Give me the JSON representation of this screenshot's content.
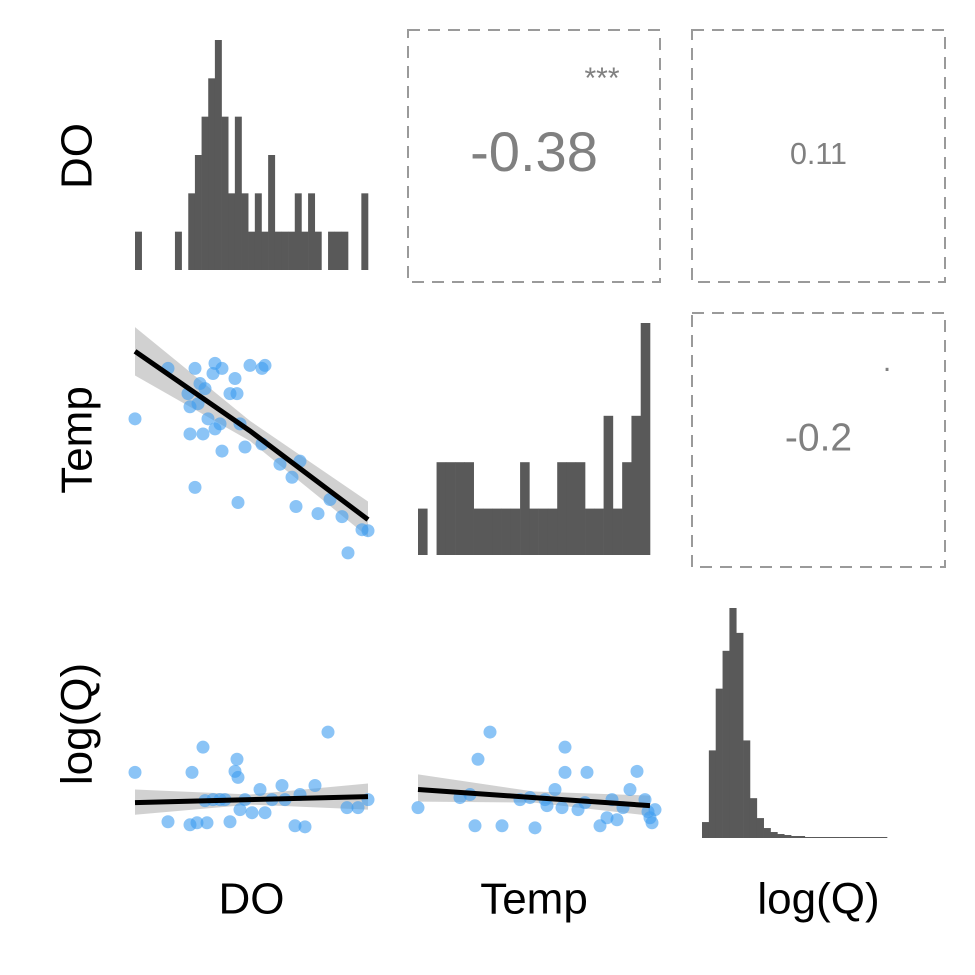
{
  "variables": [
    "DO",
    "Temp",
    "log(Q)"
  ],
  "chart_data": [
    {
      "type": "histogram",
      "bins": [
        0,
        1,
        2,
        3,
        4,
        5,
        6,
        7,
        8,
        9,
        10,
        11,
        12,
        13,
        14,
        15,
        16,
        17,
        18,
        19,
        20,
        21,
        22,
        23,
        24,
        25,
        26,
        27,
        28,
        29,
        30,
        31,
        32,
        33,
        34,
        35
      ],
      "counts": [
        1,
        0,
        0,
        0,
        0,
        0,
        1,
        0,
        2,
        3,
        4,
        5,
        6,
        4,
        2,
        4,
        2,
        1,
        2,
        1,
        3,
        1,
        1,
        1,
        2,
        1,
        2,
        1,
        0,
        1,
        1,
        1,
        0,
        0,
        2
      ],
      "xlim": [
        0,
        35
      ],
      "ylim": [
        0,
        6
      ],
      "color": "#595959"
    },
    {
      "type": "correlation",
      "value": -0.38,
      "significance": "***"
    },
    {
      "type": "correlation",
      "value": 0.11
    },
    {
      "type": "scatter",
      "xlim": [
        0,
        253
      ],
      "ylim": [
        0,
        252
      ],
      "color": "#3d9cf0",
      "x": [
        10,
        43,
        70,
        75,
        88,
        80,
        90,
        97,
        105,
        112,
        110,
        125,
        140,
        65,
        73,
        83,
        90,
        95,
        65,
        78,
        97,
        120,
        137,
        155,
        175,
        167,
        70,
        113,
        171,
        193,
        205,
        217,
        223,
        237,
        243,
        115,
        137,
        63
      ],
      "y": [
        147,
        197,
        197,
        182,
        192,
        177,
        202,
        197,
        172,
        172,
        187,
        200,
        200,
        159,
        162,
        147,
        137,
        142,
        132,
        132,
        115,
        119,
        122,
        102,
        105,
        89,
        79,
        64,
        60,
        53,
        67,
        50,
        14,
        37,
        36,
        142,
        197,
        172
      ],
      "fit": {
        "x": [
          10,
          125,
          243
        ],
        "y": [
          214,
          135,
          47
        ],
        "lower": [
          190,
          125,
          30
        ],
        "upper": [
          238,
          145,
          65
        ]
      }
    },
    {
      "type": "histogram",
      "bins": [
        0,
        1,
        2,
        3,
        4,
        5,
        6,
        7,
        8,
        9,
        10,
        11,
        12,
        13,
        14,
        15,
        16,
        17,
        18,
        19,
        20,
        21,
        22,
        23,
        24,
        25
      ],
      "counts": [
        1,
        0,
        2,
        2,
        2,
        2,
        1,
        1,
        1,
        1,
        1,
        2,
        1,
        1,
        1,
        2,
        2,
        2,
        1,
        1,
        3,
        1,
        2,
        3,
        5
      ],
      "xlim": [
        0,
        25
      ],
      "ylim": [
        0,
        5
      ],
      "color": "#595959"
    },
    {
      "type": "correlation",
      "value": -0.2,
      "significance": "."
    },
    {
      "type": "scatter",
      "xlim": [
        0,
        253
      ],
      "ylim": [
        0,
        250
      ],
      "color": "#3d9cf0",
      "x": [
        10,
        43,
        67,
        78,
        65,
        72,
        82,
        88,
        95,
        105,
        110,
        112,
        113,
        120,
        127,
        140,
        147,
        157,
        170,
        180,
        190,
        203,
        222,
        233,
        243,
        80,
        100,
        115,
        135,
        160,
        175
      ],
      "y": [
        77,
        28,
        77,
        102,
        25,
        27,
        27,
        50,
        50,
        28,
        78,
        90,
        72,
        50,
        37,
        37,
        50,
        64,
        24,
        23,
        64,
        117,
        42,
        42,
        50,
        49,
        50,
        40,
        60,
        50,
        55
      ],
      "fit": {
        "x": [
          10,
          125,
          243
        ],
        "y": [
          47,
          50,
          53
        ],
        "lower": [
          35,
          45,
          40
        ],
        "upper": [
          60,
          55,
          66
        ]
      }
    },
    {
      "type": "scatter",
      "xlim": [
        0,
        252
      ],
      "ylim": [
        0,
        250
      ],
      "color": "#3d9cf0",
      "x": [
        10,
        82,
        70,
        67,
        94,
        127,
        157,
        157,
        179,
        147,
        137,
        139,
        154,
        170,
        192,
        199,
        204,
        209,
        215,
        222,
        229,
        237,
        240,
        242,
        244,
        247,
        52,
        62,
        112,
        122,
        177
      ],
      "y": [
        42,
        117,
        90,
        24,
        24,
        22,
        102,
        77,
        77,
        60,
        50,
        44,
        42,
        40,
        24,
        32,
        50,
        30,
        42,
        60,
        78,
        50,
        38,
        32,
        27,
        40,
        52,
        55,
        50,
        52,
        47
      ],
      "fit": {
        "x": [
          10,
          126,
          242
        ],
        "y": [
          60,
          52,
          44
        ],
        "lower": [
          48,
          47,
          34
        ],
        "upper": [
          75,
          58,
          54
        ]
      }
    },
    {
      "type": "histogram",
      "bins": [
        0,
        1,
        2,
        3,
        4,
        5,
        6,
        7,
        8,
        9,
        10,
        11,
        12,
        13,
        14,
        15,
        16,
        17,
        18,
        19,
        20,
        21,
        22,
        23,
        24,
        25,
        26,
        27
      ],
      "counts": [
        16,
        88,
        150,
        188,
        231,
        206,
        98,
        40,
        20,
        10,
        6,
        4,
        3,
        2,
        2,
        1,
        1,
        1,
        1,
        1,
        1,
        1,
        1,
        1,
        1,
        1,
        1
      ],
      "xlim": [
        0,
        34
      ],
      "ylim": [
        0,
        231
      ],
      "color": "#595959"
    }
  ]
}
